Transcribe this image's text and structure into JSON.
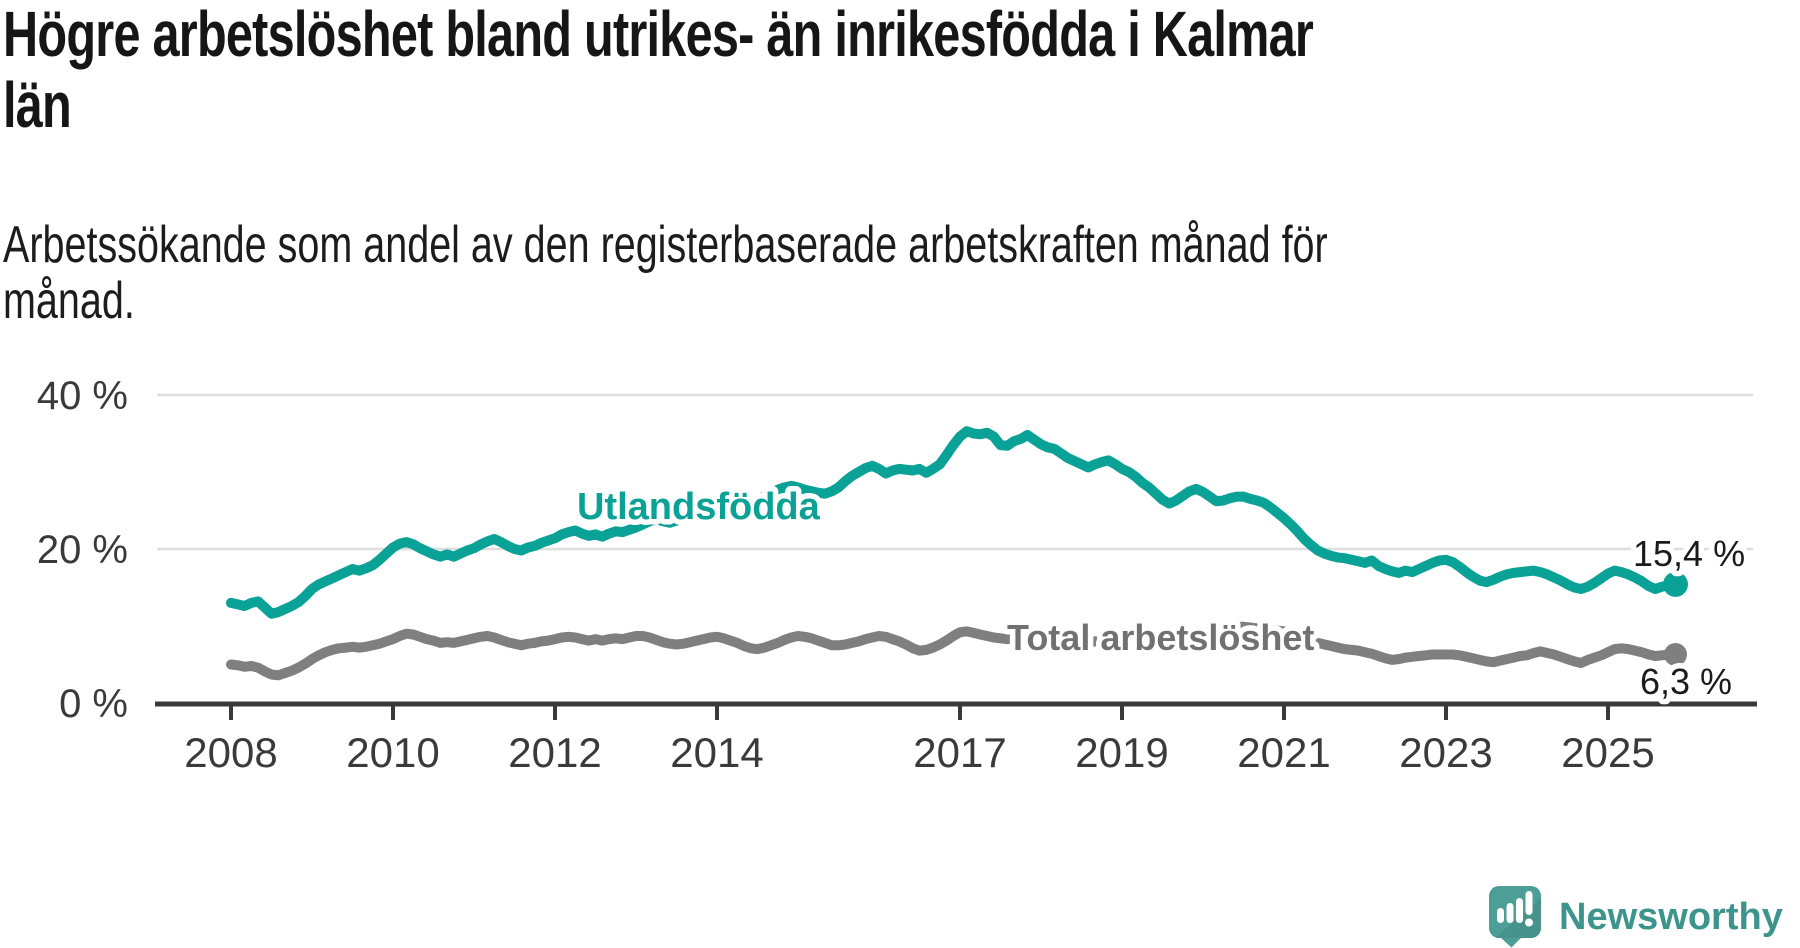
{
  "header": {
    "title": "Högre arbetslöshet bland utrikes- än inrikesfödda i Kalmar\nlän",
    "subtitle": "Arbetssökande som andel av den registerbaserade arbetskraften månad för\nmånad."
  },
  "branding": {
    "logo_text": "Newsworthy",
    "icon": "newsworthy-speech-bubble-bar-chart-icon",
    "icon_color": "#4d9e97",
    "text_color": "#3d948d"
  },
  "colors": {
    "background": "#ffffff",
    "title_text": "#161616",
    "axis_text": "#3a3a3a",
    "gridline": "#dedede",
    "series_foreign_born": "#0aa296",
    "series_total": "#7f7f7f"
  },
  "chart_data": {
    "type": "line",
    "title": "Högre arbetslöshet bland utrikes- än inrikesfödda i Kalmar län",
    "subtitle": "Arbetssökande som andel av den registerbaserade arbetskraften månad för månad.",
    "unit": "%",
    "frequency": "monthly",
    "start": "2008-01",
    "end": "2025-11",
    "grid": "horizontal",
    "legend": "inline-labels",
    "ylim": [
      0,
      43
    ],
    "x_axis": {
      "start_year": 2008,
      "ticks": [
        2008,
        2010,
        2012,
        2014,
        2017,
        2019,
        2021,
        2023,
        2025
      ]
    },
    "y_axis": {
      "ticks": [
        {
          "value": 0,
          "label": "0 %"
        },
        {
          "value": 20,
          "label": "20 %"
        },
        {
          "value": 40,
          "label": "40 %"
        }
      ]
    },
    "series": [
      {
        "name": "Utlandsfödda",
        "color": "#0aa296",
        "label_color": "#0aa296",
        "end_label": "15,4 %",
        "end_value": 15.4,
        "values": [
          13.0,
          12.8,
          12.6,
          13.0,
          13.2,
          12.4,
          11.6,
          11.8,
          12.2,
          12.6,
          13.1,
          13.9,
          14.8,
          15.4,
          15.8,
          16.2,
          16.6,
          17.0,
          17.4,
          17.2,
          17.5,
          17.9,
          18.6,
          19.4,
          20.2,
          20.7,
          20.9,
          20.6,
          20.1,
          19.7,
          19.3,
          19.0,
          19.3,
          19.0,
          19.4,
          19.8,
          20.1,
          20.6,
          21.0,
          21.3,
          20.9,
          20.4,
          20.0,
          19.8,
          20.2,
          20.4,
          20.8,
          21.1,
          21.4,
          21.9,
          22.2,
          22.4,
          22.0,
          21.7,
          21.9,
          21.6,
          22.0,
          22.3,
          22.2,
          22.5,
          22.8,
          23.2,
          23.6,
          23.9,
          23.6,
          23.4,
          23.7,
          24.0,
          24.4,
          24.8,
          25.3,
          25.7,
          26.0,
          26.3,
          26.1,
          25.8,
          25.6,
          25.9,
          26.3,
          26.8,
          27.3,
          27.7,
          28.0,
          28.2,
          28.0,
          27.7,
          27.5,
          27.3,
          27.2,
          27.5,
          28.0,
          28.8,
          29.5,
          30.0,
          30.5,
          30.8,
          30.4,
          29.8,
          30.2,
          30.4,
          30.3,
          30.2,
          30.4,
          29.9,
          30.4,
          31.0,
          32.2,
          33.5,
          34.6,
          35.3,
          35.0,
          34.9,
          35.1,
          34.6,
          33.5,
          33.4,
          34.0,
          34.3,
          34.8,
          34.2,
          33.6,
          33.2,
          33.0,
          32.4,
          31.8,
          31.4,
          31.0,
          30.6,
          31.0,
          31.3,
          31.5,
          31.0,
          30.4,
          30.0,
          29.4,
          28.6,
          28.0,
          27.2,
          26.4,
          25.9,
          26.3,
          26.9,
          27.5,
          27.8,
          27.4,
          26.8,
          26.2,
          26.3,
          26.6,
          26.8,
          26.8,
          26.5,
          26.3,
          26.0,
          25.4,
          24.7,
          24.0,
          23.2,
          22.3,
          21.3,
          20.5,
          19.8,
          19.4,
          19.1,
          18.9,
          18.8,
          18.6,
          18.4,
          18.2,
          18.5,
          17.8,
          17.4,
          17.1,
          16.9,
          17.2,
          17.0,
          17.4,
          17.8,
          18.2,
          18.5,
          18.6,
          18.3,
          17.7,
          17.0,
          16.4,
          15.9,
          15.7,
          16.0,
          16.4,
          16.7,
          16.9,
          17.0,
          17.1,
          17.2,
          17.0,
          16.7,
          16.3,
          15.9,
          15.4,
          15.0,
          14.8,
          15.1,
          15.6,
          16.2,
          16.8,
          17.2,
          17.0,
          16.7,
          16.3,
          15.8,
          15.2,
          14.8,
          15.1,
          15.3,
          15.4
        ]
      },
      {
        "name": "Total arbetslöshet",
        "color": "#7f7f7f",
        "label_color": "#717171",
        "end_label": "6,3 %",
        "end_value": 6.3,
        "values": [
          5.0,
          4.9,
          4.7,
          4.8,
          4.6,
          4.1,
          3.7,
          3.6,
          3.9,
          4.2,
          4.6,
          5.1,
          5.7,
          6.2,
          6.6,
          6.9,
          7.1,
          7.2,
          7.3,
          7.2,
          7.3,
          7.5,
          7.7,
          8.0,
          8.3,
          8.7,
          9.0,
          8.9,
          8.6,
          8.3,
          8.1,
          7.8,
          7.9,
          7.8,
          8.0,
          8.2,
          8.4,
          8.6,
          8.7,
          8.5,
          8.2,
          7.9,
          7.7,
          7.5,
          7.7,
          7.8,
          8.0,
          8.1,
          8.3,
          8.5,
          8.6,
          8.5,
          8.3,
          8.1,
          8.3,
          8.1,
          8.3,
          8.4,
          8.3,
          8.5,
          8.7,
          8.7,
          8.5,
          8.2,
          7.9,
          7.7,
          7.6,
          7.7,
          7.9,
          8.1,
          8.3,
          8.5,
          8.6,
          8.4,
          8.1,
          7.8,
          7.4,
          7.1,
          7.0,
          7.2,
          7.5,
          7.8,
          8.2,
          8.5,
          8.7,
          8.6,
          8.4,
          8.1,
          7.8,
          7.5,
          7.5,
          7.6,
          7.8,
          8.0,
          8.3,
          8.5,
          8.7,
          8.6,
          8.3,
          8.0,
          7.6,
          7.1,
          6.8,
          6.9,
          7.2,
          7.6,
          8.1,
          8.7,
          9.2,
          9.3,
          9.1,
          8.9,
          8.7,
          8.5,
          8.4,
          8.3,
          8.5,
          8.6,
          8.8,
          9.0,
          9.1,
          9.0,
          8.8,
          8.5,
          8.2,
          8.0,
          7.9,
          7.8,
          8.0,
          8.1,
          8.3,
          8.5,
          8.6,
          8.5,
          8.3,
          8.1,
          7.9,
          7.7,
          7.6,
          7.5,
          7.7,
          7.8,
          8.0,
          8.1,
          8.2,
          8.3,
          8.6,
          9.3,
          9.8,
          9.9,
          9.9,
          9.8,
          9.7,
          9.6,
          9.5,
          9.4,
          9.3,
          9.1,
          8.8,
          8.4,
          8.1,
          7.8,
          7.6,
          7.4,
          7.2,
          7.0,
          6.9,
          6.8,
          6.6,
          6.4,
          6.1,
          5.8,
          5.6,
          5.7,
          5.9,
          6.0,
          6.1,
          6.2,
          6.3,
          6.3,
          6.3,
          6.3,
          6.2,
          6.0,
          5.8,
          5.6,
          5.4,
          5.3,
          5.5,
          5.7,
          5.9,
          6.1,
          6.2,
          6.5,
          6.7,
          6.5,
          6.3,
          6.0,
          5.7,
          5.4,
          5.2,
          5.6,
          5.9,
          6.2,
          6.6,
          7.0,
          7.1,
          7.0,
          6.8,
          6.6,
          6.3,
          6.1,
          6.2,
          6.3,
          6.3
        ]
      }
    ]
  }
}
